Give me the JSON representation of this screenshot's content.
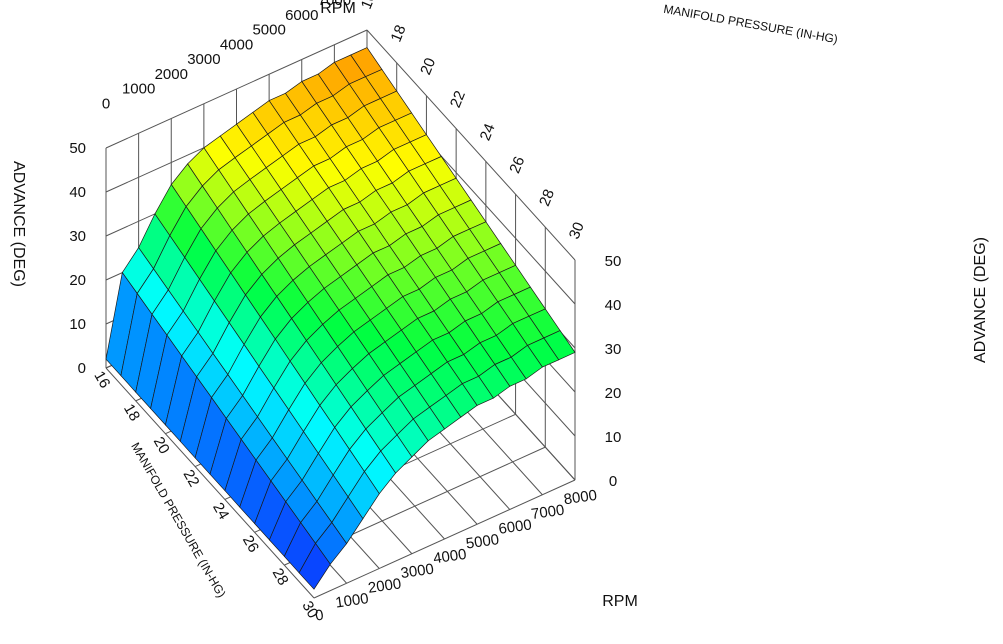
{
  "chart_data": {
    "type": "surface3d",
    "title": "",
    "rpm_axis_label": "RPM",
    "map_axis_label": "MANIFOLD PRESSURE (IN-HG)",
    "advance_axis_label": "ADVANCE (DEG)",
    "rpm_ticks": [
      0,
      1000,
      2000,
      3000,
      4000,
      5000,
      6000,
      7000,
      8000
    ],
    "map_ticks": [
      16,
      18,
      20,
      22,
      24,
      26,
      28,
      30
    ],
    "advance_ticks": [
      0,
      10,
      20,
      30,
      40,
      50
    ],
    "rpm_range": [
      0,
      8000
    ],
    "map_range": [
      16,
      30
    ],
    "advance_range": [
      0,
      50
    ],
    "rpm": [
      0,
      500,
      1000,
      1500,
      2000,
      2500,
      3000,
      3500,
      4000,
      4500,
      5000,
      5500,
      6000,
      6500,
      7000,
      7500,
      8000
    ],
    "map": [
      16,
      17,
      18,
      19,
      20,
      21,
      22,
      23,
      24,
      25,
      26,
      27,
      28,
      29,
      30
    ],
    "advance_at_map_min": [
      2,
      20,
      24,
      30,
      35,
      38,
      40,
      41,
      42,
      43,
      44,
      44,
      45,
      45,
      46,
      46,
      46
    ],
    "advance_at_map_max": [
      2,
      6,
      9,
      13,
      17,
      20,
      22,
      24,
      25,
      26,
      27,
      27,
      28,
      28,
      29,
      29,
      29
    ],
    "colorscale": [
      "#1010ff",
      "#0090ff",
      "#00ffff",
      "#00ff40",
      "#ffff00",
      "#ff5a00"
    ],
    "grid": true
  }
}
